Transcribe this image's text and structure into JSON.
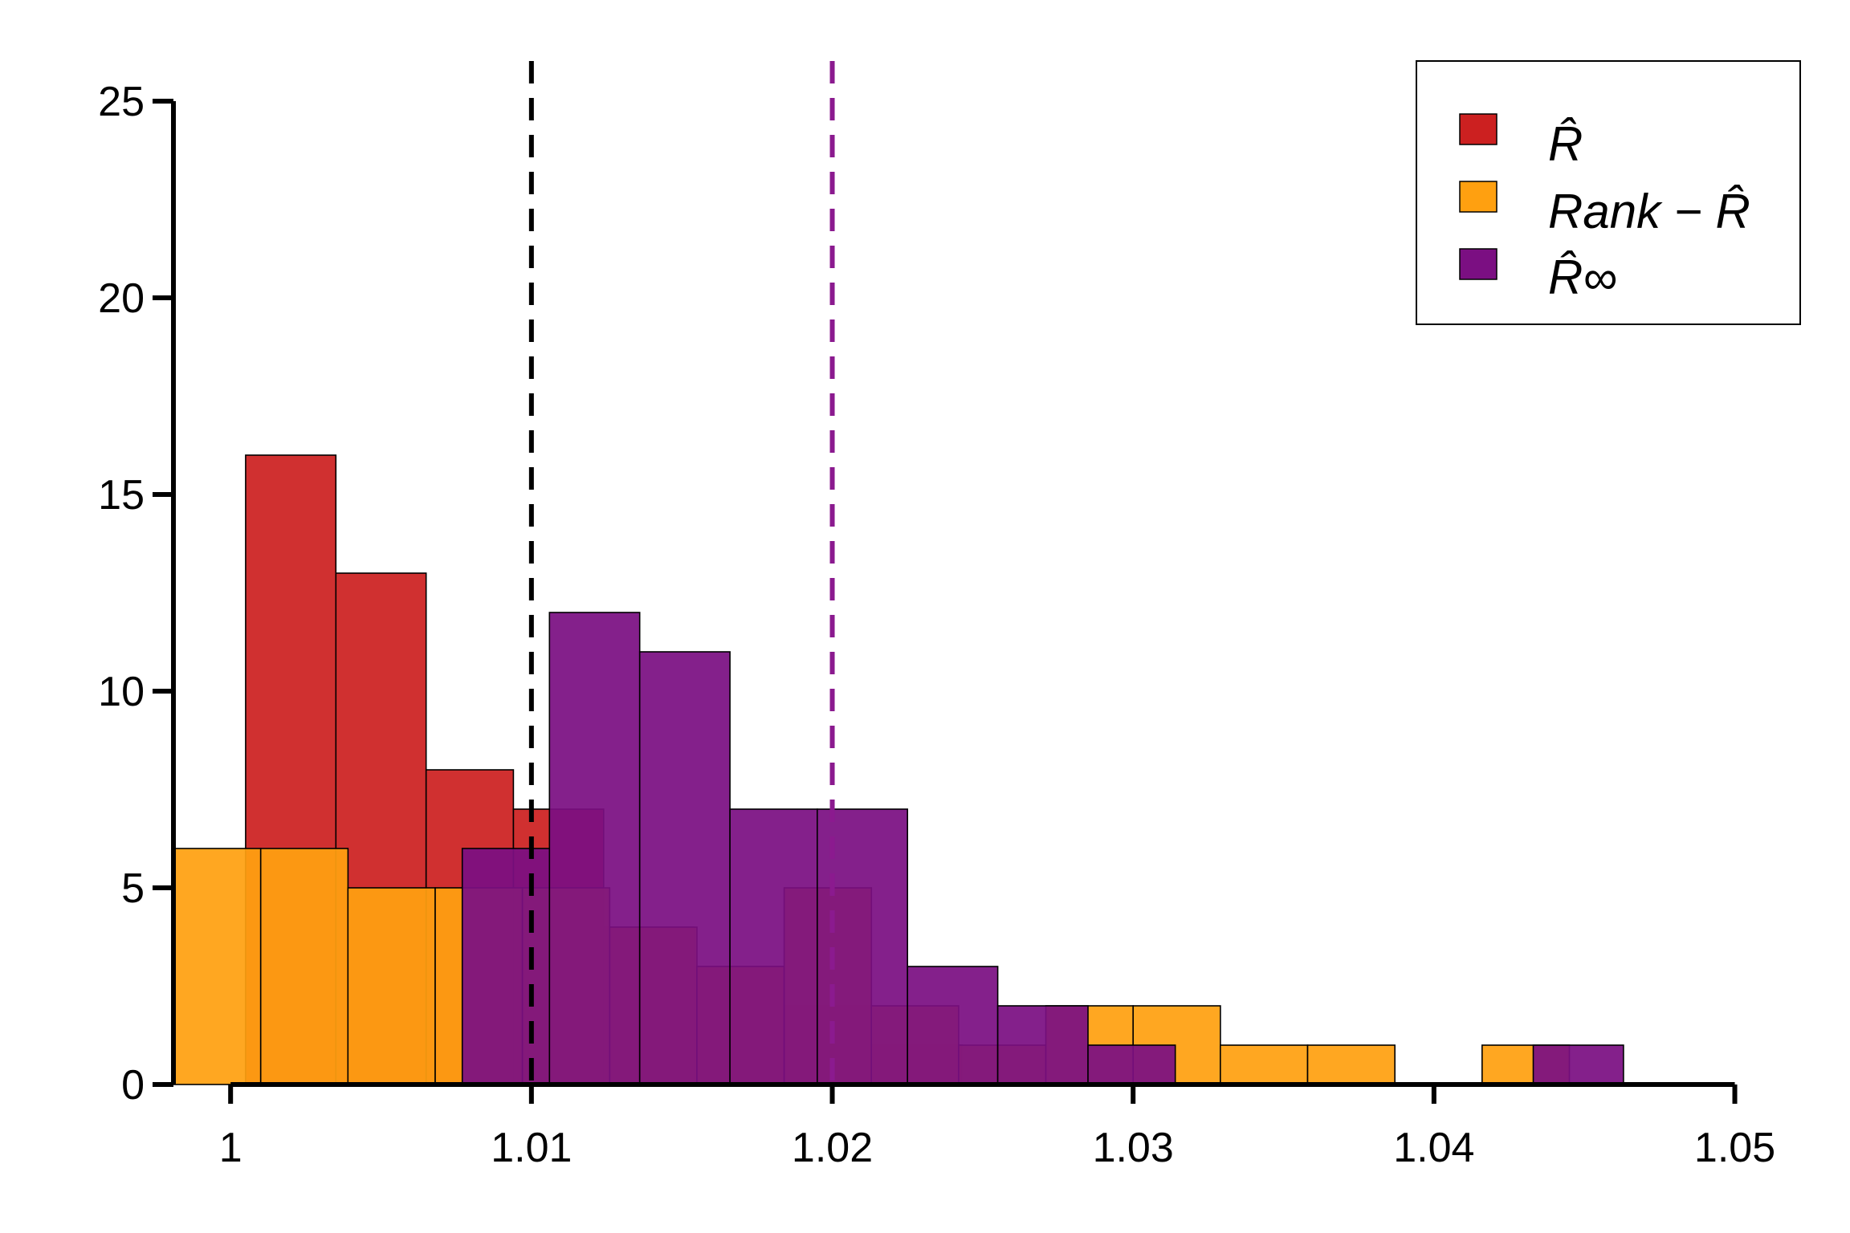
{
  "chart_data": {
    "type": "bar",
    "title": "",
    "xlabel": "",
    "ylabel": "",
    "xlim": [
      0.9981,
      1.0506
    ],
    "ylim": [
      0,
      25
    ],
    "x_ticks": [
      1,
      1.01,
      1.02,
      1.03,
      1.04,
      1.05
    ],
    "x_tick_labels": [
      "1",
      "1.01",
      "1.02",
      "1.03",
      "1.04",
      "1.05"
    ],
    "y_ticks": [
      0,
      5,
      10,
      15,
      20,
      25
    ],
    "y_tick_labels": [
      "0",
      "5",
      "10",
      "15",
      "20",
      "25"
    ],
    "grid": false,
    "legend_position": "top-right",
    "legend": {
      "r_hat": "R̂",
      "rank_r_hat": "Rank − R̂",
      "r_hat_inf": "R̂∞"
    },
    "series": [
      {
        "key": "r_hat",
        "color": "#cc2020",
        "opacity": 0.93,
        "bins": [
          {
            "x0": 1.0005,
            "x1": 1.0035,
            "count": 16
          },
          {
            "x0": 1.0035,
            "x1": 1.0065,
            "count": 13
          },
          {
            "x0": 1.0065,
            "x1": 1.0094,
            "count": 8
          },
          {
            "x0": 1.0094,
            "x1": 1.0124,
            "count": 7
          },
          {
            "x0": 1.0124,
            "x1": 1.0154,
            "count": 4
          },
          {
            "x0": 1.0154,
            "x1": 1.0184,
            "count": 3
          },
          {
            "x0": 1.0184,
            "x1": 1.0213,
            "count": 2
          },
          {
            "x0": 1.0213,
            "x1": 1.0243,
            "count": 1
          }
        ]
      },
      {
        "key": "rank_r_hat",
        "color": "#ffa010",
        "opacity": 0.93,
        "bins": [
          {
            "x0": 0.9981,
            "x1": 1.001,
            "count": 6
          },
          {
            "x0": 1.001,
            "x1": 1.0039,
            "count": 6
          },
          {
            "x0": 1.0039,
            "x1": 1.0068,
            "count": 5
          },
          {
            "x0": 1.0068,
            "x1": 1.0097,
            "count": 5
          },
          {
            "x0": 1.0097,
            "x1": 1.0126,
            "count": 5
          },
          {
            "x0": 1.0126,
            "x1": 1.0155,
            "count": 4
          },
          {
            "x0": 1.0155,
            "x1": 1.0184,
            "count": 3
          },
          {
            "x0": 1.0184,
            "x1": 1.0213,
            "count": 5
          },
          {
            "x0": 1.0213,
            "x1": 1.0242,
            "count": 2
          },
          {
            "x0": 1.0242,
            "x1": 1.0271,
            "count": 1
          },
          {
            "x0": 1.0271,
            "x1": 1.03,
            "count": 2
          },
          {
            "x0": 1.03,
            "x1": 1.0329,
            "count": 2
          },
          {
            "x0": 1.0329,
            "x1": 1.0358,
            "count": 1
          },
          {
            "x0": 1.0358,
            "x1": 1.0387,
            "count": 1
          },
          {
            "x0": 1.0387,
            "x1": 1.0416,
            "count": 0
          },
          {
            "x0": 1.0416,
            "x1": 1.0445,
            "count": 1
          }
        ]
      },
      {
        "key": "r_hat_inf",
        "color": "#7b0f82",
        "opacity": 0.93,
        "bins": [
          {
            "x0": 1.0077,
            "x1": 1.0106,
            "count": 6
          },
          {
            "x0": 1.0106,
            "x1": 1.0136,
            "count": 12
          },
          {
            "x0": 1.0136,
            "x1": 1.0166,
            "count": 11
          },
          {
            "x0": 1.0166,
            "x1": 1.0195,
            "count": 7
          },
          {
            "x0": 1.0195,
            "x1": 1.0225,
            "count": 7
          },
          {
            "x0": 1.0225,
            "x1": 1.0255,
            "count": 3
          },
          {
            "x0": 1.0255,
            "x1": 1.0285,
            "count": 2
          },
          {
            "x0": 1.0285,
            "x1": 1.0314,
            "count": 1
          },
          {
            "x0": 1.0314,
            "x1": 1.0344,
            "count": 0
          },
          {
            "x0": 1.0344,
            "x1": 1.0374,
            "count": 0
          },
          {
            "x0": 1.0374,
            "x1": 1.0403,
            "count": 0
          },
          {
            "x0": 1.0403,
            "x1": 1.0433,
            "count": 0
          },
          {
            "x0": 1.0433,
            "x1": 1.0463,
            "count": 1
          }
        ]
      }
    ],
    "reference_lines": [
      {
        "x": 1.01,
        "color": "#000000",
        "style": "dashed"
      },
      {
        "x": 1.02,
        "color": "#8b1a8f",
        "style": "dashed"
      }
    ]
  }
}
